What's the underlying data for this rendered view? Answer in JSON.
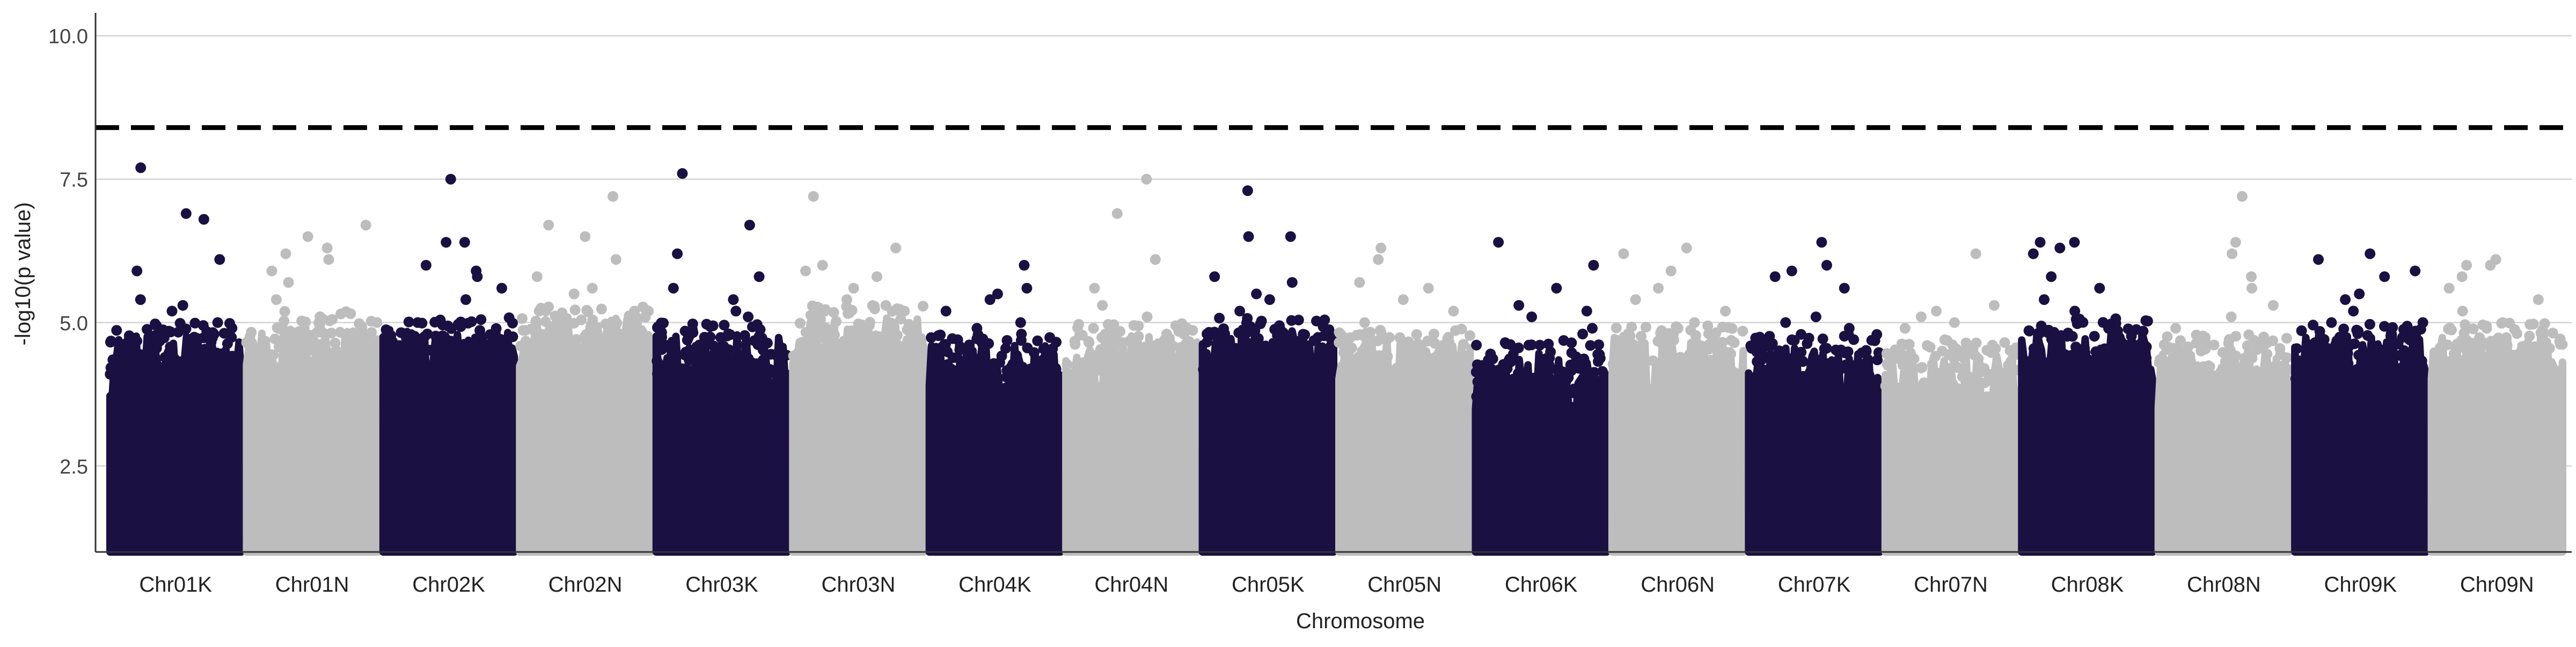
{
  "chart_data": {
    "type": "scatter",
    "title": "",
    "xlabel": "Chromosome",
    "ylabel": "-log10(p value)",
    "ylim": [
      1.0,
      10.4
    ],
    "yticks": [
      2.5,
      5.0,
      7.5,
      10.0
    ],
    "grid": true,
    "legend": "none",
    "threshold": 8.4,
    "colors": {
      "dark": "#1b1042",
      "light": "#bdbdbd",
      "threshold": "#000000"
    },
    "categories": [
      "Chr01K",
      "Chr01N",
      "Chr02K",
      "Chr02N",
      "Chr03K",
      "Chr03N",
      "Chr04K",
      "Chr04N",
      "Chr05K",
      "Chr05N",
      "Chr06K",
      "Chr06N",
      "Chr07K",
      "Chr07N",
      "Chr08K",
      "Chr08N",
      "Chr09K",
      "Chr09N"
    ],
    "series": [
      {
        "category": "Chr01K",
        "color": "dark",
        "base": 4.3,
        "peaks": [
          7.7,
          6.9,
          6.8,
          6.1,
          5.9,
          5.4,
          5.3,
          5.2
        ]
      },
      {
        "category": "Chr01N",
        "color": "light",
        "base": 4.5,
        "peaks": [
          6.7,
          6.5,
          6.3,
          6.2,
          6.1,
          5.9,
          5.7,
          5.4
        ]
      },
      {
        "category": "Chr02K",
        "color": "dark",
        "base": 4.4,
        "peaks": [
          7.5,
          6.4,
          6.4,
          6.0,
          5.9,
          5.8,
          5.6,
          5.4
        ]
      },
      {
        "category": "Chr02N",
        "color": "light",
        "base": 4.6,
        "peaks": [
          7.2,
          6.7,
          6.5,
          6.1,
          5.8,
          5.6,
          5.5,
          5.2
        ]
      },
      {
        "category": "Chr03K",
        "color": "dark",
        "base": 4.3,
        "peaks": [
          7.6,
          6.7,
          6.2,
          5.8,
          5.6,
          5.4,
          5.2,
          5.1
        ]
      },
      {
        "category": "Chr03N",
        "color": "light",
        "base": 4.6,
        "peaks": [
          7.2,
          6.3,
          6.0,
          5.9,
          5.8,
          5.6,
          5.4,
          5.2
        ]
      },
      {
        "category": "Chr04K",
        "color": "dark",
        "base": 4.1,
        "peaks": [
          6.0,
          5.6,
          5.5,
          5.4,
          5.2,
          5.0,
          4.9,
          4.7
        ]
      },
      {
        "category": "Chr04N",
        "color": "light",
        "base": 4.3,
        "peaks": [
          7.5,
          6.9,
          6.1,
          5.6,
          5.3,
          5.1,
          4.9,
          4.8
        ]
      },
      {
        "category": "Chr05K",
        "color": "dark",
        "base": 4.4,
        "peaks": [
          7.3,
          6.5,
          6.5,
          5.8,
          5.7,
          5.5,
          5.4,
          5.2
        ]
      },
      {
        "category": "Chr05N",
        "color": "light",
        "base": 4.2,
        "peaks": [
          6.3,
          6.1,
          5.7,
          5.6,
          5.4,
          5.2,
          5.0,
          4.8
        ]
      },
      {
        "category": "Chr06K",
        "color": "dark",
        "base": 4.0,
        "peaks": [
          6.4,
          6.0,
          5.6,
          5.3,
          5.2,
          5.1,
          4.9,
          4.8
        ]
      },
      {
        "category": "Chr06N",
        "color": "light",
        "base": 4.3,
        "peaks": [
          6.3,
          6.2,
          5.9,
          5.6,
          5.4,
          5.2,
          5.0,
          4.8
        ]
      },
      {
        "category": "Chr07K",
        "color": "dark",
        "base": 4.1,
        "peaks": [
          6.4,
          6.0,
          5.9,
          5.8,
          5.6,
          5.1,
          5.0,
          4.9
        ]
      },
      {
        "category": "Chr07N",
        "color": "light",
        "base": 4.0,
        "peaks": [
          6.2,
          5.3,
          5.2,
          5.1,
          5.0,
          4.9,
          4.7,
          4.6
        ]
      },
      {
        "category": "Chr08K",
        "color": "dark",
        "base": 4.4,
        "peaks": [
          6.4,
          6.4,
          6.3,
          6.2,
          5.8,
          5.6,
          5.4,
          5.2
        ]
      },
      {
        "category": "Chr08N",
        "color": "light",
        "base": 4.1,
        "peaks": [
          7.2,
          6.4,
          6.2,
          5.8,
          5.6,
          5.3,
          5.1,
          4.9
        ]
      },
      {
        "category": "Chr09K",
        "color": "dark",
        "base": 4.3,
        "peaks": [
          6.2,
          6.1,
          5.9,
          5.8,
          5.5,
          5.4,
          5.2,
          5.0
        ]
      },
      {
        "category": "Chr09N",
        "color": "light",
        "base": 4.3,
        "peaks": [
          6.1,
          6.0,
          6.0,
          5.8,
          5.6,
          5.4,
          5.2,
          5.0
        ]
      }
    ]
  }
}
